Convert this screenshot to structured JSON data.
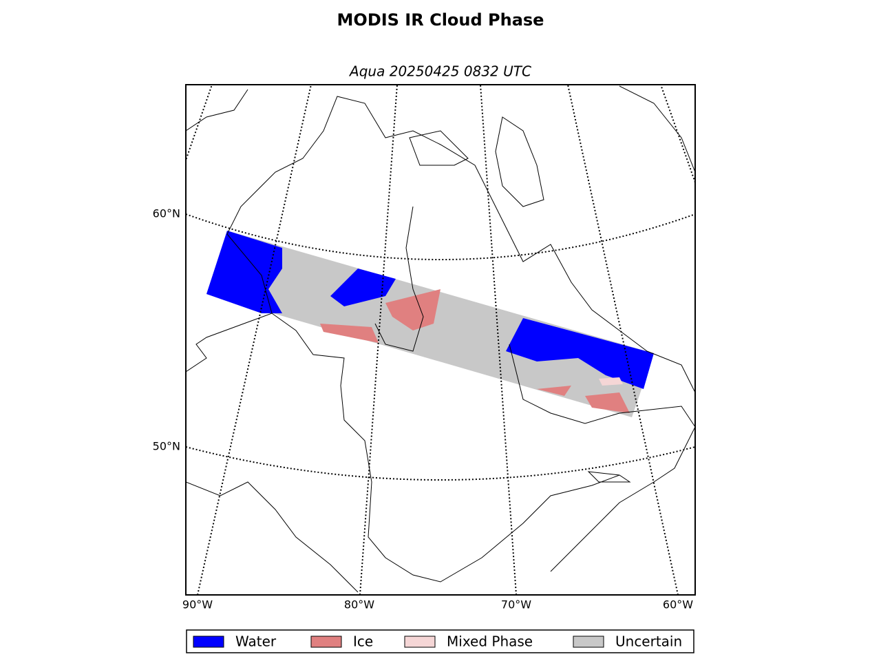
{
  "title": "MODIS IR Cloud Phase",
  "subtitle": "Aqua 20250425 0832 UTC",
  "lat_labels": [
    "60°N",
    "50°N"
  ],
  "lon_labels": [
    "90°W",
    "80°W",
    "70°W",
    "60°W"
  ],
  "legend": [
    {
      "label": "Water",
      "color": "#0000ff"
    },
    {
      "label": "Ice",
      "color": "#e08080"
    },
    {
      "label": "Mixed Phase",
      "color": "#f5d6d6"
    },
    {
      "label": "Uncertain",
      "color": "#c8c8c8"
    }
  ]
}
